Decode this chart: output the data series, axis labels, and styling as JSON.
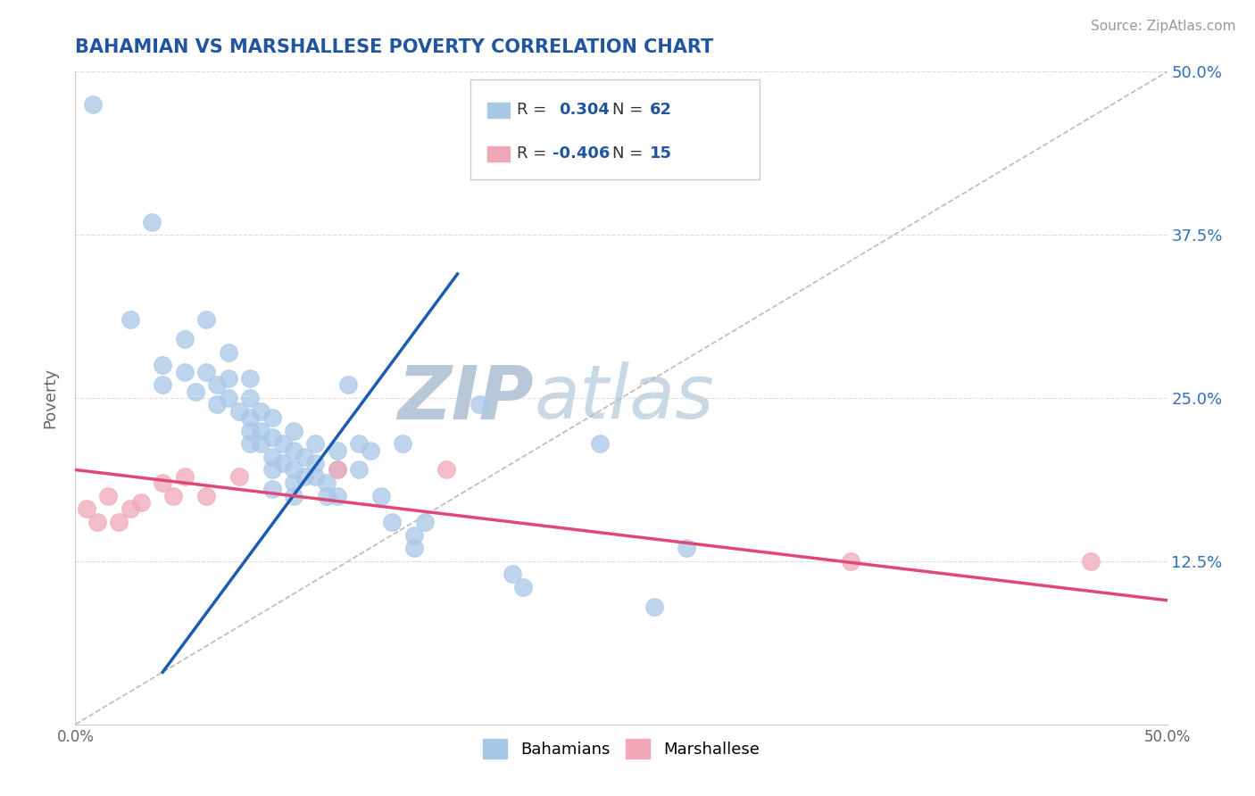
{
  "title": "BAHAMIAN VS MARSHALLESE POVERTY CORRELATION CHART",
  "source_text": "Source: ZipAtlas.com",
  "ylabel": "Poverty",
  "xlim": [
    0.0,
    0.5
  ],
  "ylim": [
    0.0,
    0.5
  ],
  "blue_color": "#A8C8E8",
  "pink_color": "#F0A8B8",
  "line_blue": "#1A5CB0",
  "line_pink": "#E04878",
  "watermark_zip_color": "#C0CDD8",
  "watermark_atlas_color": "#A8B8C8",
  "title_color": "#2255A0",
  "tick_color_right": "#3070B8",
  "background_color": "#FFFFFF",
  "grid_color": "#DDDDDD",
  "blue_line_x0": 0.04,
  "blue_line_y0": 0.04,
  "blue_line_x1": 0.175,
  "blue_line_y1": 0.345,
  "pink_line_x0": 0.0,
  "pink_line_y0": 0.195,
  "pink_line_x1": 0.5,
  "pink_line_y1": 0.095,
  "diag_color": "#BBBBBB",
  "bahamian_points": [
    [
      0.008,
      0.475
    ],
    [
      0.035,
      0.385
    ],
    [
      0.025,
      0.31
    ],
    [
      0.04,
      0.275
    ],
    [
      0.04,
      0.26
    ],
    [
      0.05,
      0.295
    ],
    [
      0.05,
      0.27
    ],
    [
      0.055,
      0.255
    ],
    [
      0.06,
      0.31
    ],
    [
      0.06,
      0.27
    ],
    [
      0.065,
      0.26
    ],
    [
      0.065,
      0.245
    ],
    [
      0.07,
      0.285
    ],
    [
      0.07,
      0.265
    ],
    [
      0.07,
      0.25
    ],
    [
      0.075,
      0.24
    ],
    [
      0.08,
      0.265
    ],
    [
      0.08,
      0.25
    ],
    [
      0.08,
      0.235
    ],
    [
      0.08,
      0.225
    ],
    [
      0.08,
      0.215
    ],
    [
      0.085,
      0.24
    ],
    [
      0.085,
      0.225
    ],
    [
      0.085,
      0.215
    ],
    [
      0.09,
      0.235
    ],
    [
      0.09,
      0.22
    ],
    [
      0.09,
      0.205
    ],
    [
      0.09,
      0.195
    ],
    [
      0.09,
      0.18
    ],
    [
      0.095,
      0.215
    ],
    [
      0.095,
      0.2
    ],
    [
      0.1,
      0.225
    ],
    [
      0.1,
      0.21
    ],
    [
      0.1,
      0.195
    ],
    [
      0.1,
      0.185
    ],
    [
      0.1,
      0.175
    ],
    [
      0.105,
      0.205
    ],
    [
      0.105,
      0.19
    ],
    [
      0.11,
      0.215
    ],
    [
      0.11,
      0.2
    ],
    [
      0.11,
      0.19
    ],
    [
      0.115,
      0.185
    ],
    [
      0.115,
      0.175
    ],
    [
      0.12,
      0.21
    ],
    [
      0.12,
      0.195
    ],
    [
      0.12,
      0.175
    ],
    [
      0.125,
      0.26
    ],
    [
      0.13,
      0.215
    ],
    [
      0.13,
      0.195
    ],
    [
      0.135,
      0.21
    ],
    [
      0.14,
      0.175
    ],
    [
      0.145,
      0.155
    ],
    [
      0.15,
      0.215
    ],
    [
      0.155,
      0.145
    ],
    [
      0.155,
      0.135
    ],
    [
      0.16,
      0.155
    ],
    [
      0.185,
      0.245
    ],
    [
      0.2,
      0.115
    ],
    [
      0.205,
      0.105
    ],
    [
      0.24,
      0.215
    ],
    [
      0.265,
      0.09
    ],
    [
      0.28,
      0.135
    ]
  ],
  "marshallese_points": [
    [
      0.005,
      0.165
    ],
    [
      0.01,
      0.155
    ],
    [
      0.015,
      0.175
    ],
    [
      0.02,
      0.155
    ],
    [
      0.025,
      0.165
    ],
    [
      0.03,
      0.17
    ],
    [
      0.04,
      0.185
    ],
    [
      0.045,
      0.175
    ],
    [
      0.05,
      0.19
    ],
    [
      0.06,
      0.175
    ],
    [
      0.075,
      0.19
    ],
    [
      0.12,
      0.195
    ],
    [
      0.17,
      0.195
    ],
    [
      0.355,
      0.125
    ],
    [
      0.465,
      0.125
    ]
  ]
}
